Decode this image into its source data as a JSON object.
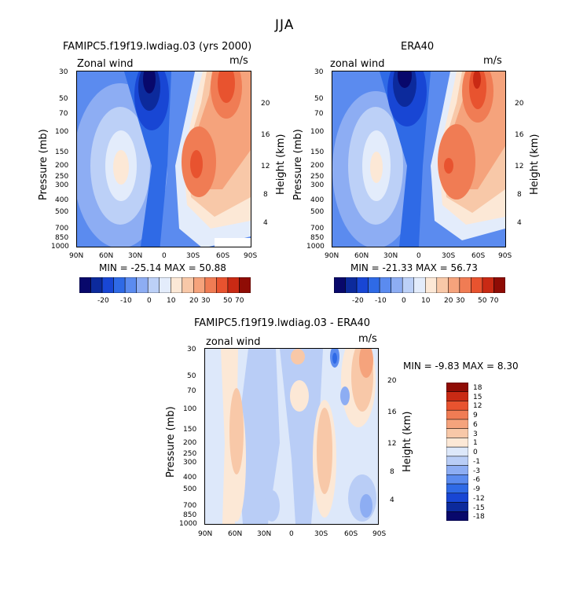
{
  "main_title": "JJA",
  "panels": {
    "left": {
      "title": "FAMIPC5.f19f19.lwdiag.03 (yrs 2000)",
      "variable": "Zonal wind",
      "units": "m/s",
      "stats": "MIN = -25.14   MAX =  50.88"
    },
    "right": {
      "title": "ERA40",
      "variable": "zonal wind",
      "units": "m/s",
      "stats": "MIN = -21.33   MAX =  56.73"
    },
    "diff": {
      "title": "FAMIPC5.f19f19.lwdiag.03 - ERA40",
      "variable": "zonal wind",
      "units": "m/s",
      "stats": "MIN =    -9.83  MAX =    8.30"
    }
  },
  "axes": {
    "ylabel": "Pressure (mb)",
    "y2label": "Height (km)",
    "pressure_ticks": [
      "30",
      "50",
      "70",
      "100",
      "150",
      "200",
      "250",
      "300",
      "400",
      "500",
      "700",
      "850",
      "1000"
    ],
    "height_ticks": [
      "20",
      "16",
      "12",
      "8",
      "4"
    ],
    "lat_ticks": [
      "90N",
      "60N",
      "30N",
      "0",
      "30S",
      "60S",
      "90S"
    ]
  },
  "colorbars": {
    "main": {
      "labels": [
        "-20",
        "-10",
        "0",
        "10",
        "20",
        "30",
        "50",
        "70"
      ],
      "colors": [
        "#08086b",
        "#0c2a9c",
        "#1846d4",
        "#2f6ae6",
        "#5b8bef",
        "#8dadf3",
        "#bcd0f7",
        "#e3ecfb",
        "#fce8d6",
        "#f8c8a8",
        "#f5a37c",
        "#f07c54",
        "#e8532f",
        "#c92a14",
        "#8f0c05"
      ]
    },
    "diff": {
      "labels": [
        "18",
        "15",
        "12",
        "9",
        "6",
        "3",
        "1",
        "0",
        "-1",
        "-3",
        "-6",
        "-9",
        "-12",
        "-15",
        "-18"
      ],
      "colors": [
        "#8f0c05",
        "#c92a14",
        "#e8532f",
        "#f07c54",
        "#f5a37c",
        "#f8c8a8",
        "#fce8d6",
        "#dde8fa",
        "#b9cdf6",
        "#8dadf3",
        "#5b8bef",
        "#2f6ae6",
        "#1846d4",
        "#0c2a9c",
        "#08086b"
      ]
    }
  },
  "chart_data": [
    {
      "type": "heatmap",
      "title": "FAMIPC5.f19f19.lwdiag.03 (yrs 2000)",
      "variable": "Zonal wind",
      "units": "m/s",
      "xlabel": "",
      "ylabel": "Pressure (mb)",
      "y2label": "Height (km)",
      "x_range": [
        "90N",
        "90S"
      ],
      "y_range_mb": [
        1000,
        30
      ],
      "min": -25.14,
      "max": 50.88,
      "features": [
        {
          "lat": 45,
          "pressure_mb": 200,
          "value": 15
        },
        {
          "lat": 10,
          "pressure_mb": 40,
          "value": -25
        },
        {
          "lat": -35,
          "pressure_mb": 200,
          "value": 45
        },
        {
          "lat": -60,
          "pressure_mb": 40,
          "value": 50
        }
      ]
    },
    {
      "type": "heatmap",
      "title": "ERA40",
      "variable": "zonal wind",
      "units": "m/s",
      "ylabel": "Pressure (mb)",
      "y2label": "Height (km)",
      "x_range": [
        "90N",
        "90S"
      ],
      "y_range_mb": [
        1000,
        30
      ],
      "min": -21.33,
      "max": 56.73,
      "features": [
        {
          "lat": 45,
          "pressure_mb": 200,
          "value": 18
        },
        {
          "lat": 12,
          "pressure_mb": 35,
          "value": -21
        },
        {
          "lat": -35,
          "pressure_mb": 200,
          "value": 50
        },
        {
          "lat": -60,
          "pressure_mb": 40,
          "value": 56
        }
      ]
    },
    {
      "type": "heatmap",
      "title": "FAMIPC5.f19f19.lwdiag.03 - ERA40",
      "variable": "zonal wind",
      "units": "m/s",
      "ylabel": "Pressure (mb)",
      "y2label": "Height (km)",
      "x_range": [
        "90N",
        "90S"
      ],
      "y_range_mb": [
        1000,
        30
      ],
      "min": -9.83,
      "max": 8.3,
      "features": [
        {
          "lat": 55,
          "pressure_mb": 200,
          "value": 4
        },
        {
          "lat": -30,
          "pressure_mb": 200,
          "value": 5
        },
        {
          "lat": -75,
          "pressure_mb": 40,
          "value": 8
        },
        {
          "lat": -50,
          "pressure_mb": 35,
          "value": -9
        }
      ]
    }
  ]
}
